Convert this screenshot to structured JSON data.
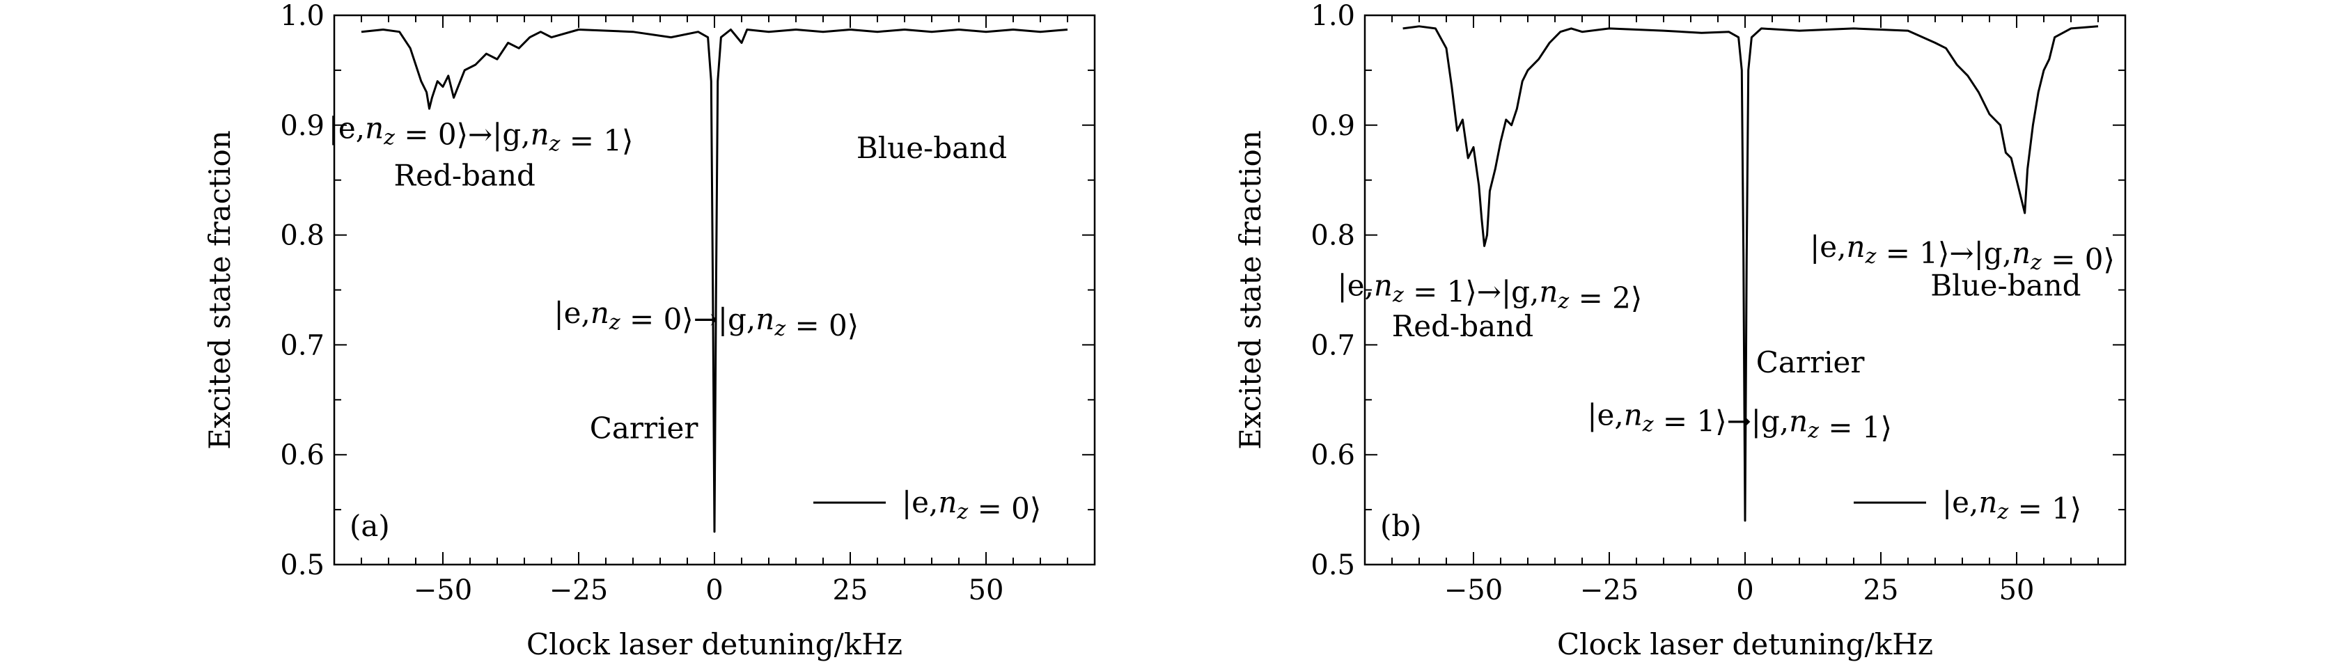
{
  "chart_data": [
    {
      "type": "line",
      "panel_label": "(a)",
      "xlabel": "Clock laser detuning/kHz",
      "ylabel": "Excited state fraction",
      "xlim": [
        -70,
        70
      ],
      "ylim": [
        0.5,
        1.0
      ],
      "xticks": [
        -50,
        -25,
        0,
        25,
        50
      ],
      "xtick_labels": [
        "−50",
        "−25",
        "0",
        "25",
        "50"
      ],
      "yticks": [
        0.5,
        0.6,
        0.7,
        0.8,
        0.9,
        1.0
      ],
      "ytick_labels": [
        "0.5",
        "0.6",
        "0.7",
        "0.8",
        "0.9",
        "1.0"
      ],
      "legend": "|e,n_z = 0⟩",
      "legend_placement": "bottom-right",
      "grid": false,
      "annotations": [
        {
          "text": "|e,n_z = 0⟩→|g,n_z = 1⟩",
          "x": -43,
          "y": 0.888
        },
        {
          "text": "Red-band",
          "x": -46,
          "y": 0.845
        },
        {
          "text": "Blue-band",
          "x": 40,
          "y": 0.87
        },
        {
          "text": "|e,n_z = 0⟩→|g,n_z = 0⟩",
          "x": -1.5,
          "y": 0.72
        },
        {
          "text": "Carrier",
          "x": -13,
          "y": 0.615
        }
      ],
      "series": [
        {
          "x": [
            -65,
            -61,
            -58,
            -56,
            -55,
            -54,
            -53,
            -52.5,
            -52,
            -51,
            -50,
            -49,
            -48,
            -46,
            -44,
            -42,
            -40,
            -38,
            -36,
            -34,
            -32,
            -30,
            -25,
            -15,
            -8,
            -3,
            -1.2,
            -0.6,
            -0.3,
            0,
            0.3,
            0.6,
            1.2,
            3,
            5,
            6,
            10,
            15,
            20,
            25,
            30,
            35,
            40,
            45,
            50,
            55,
            60,
            65
          ],
          "y": [
            0.985,
            0.987,
            0.985,
            0.97,
            0.955,
            0.94,
            0.93,
            0.915,
            0.925,
            0.94,
            0.935,
            0.945,
            0.925,
            0.95,
            0.955,
            0.965,
            0.96,
            0.975,
            0.97,
            0.98,
            0.985,
            0.98,
            0.987,
            0.985,
            0.98,
            0.985,
            0.98,
            0.94,
            0.75,
            0.53,
            0.75,
            0.94,
            0.98,
            0.987,
            0.975,
            0.987,
            0.985,
            0.987,
            0.985,
            0.987,
            0.985,
            0.987,
            0.985,
            0.987,
            0.985,
            0.987,
            0.985,
            0.987
          ]
        }
      ]
    },
    {
      "type": "line",
      "panel_label": "(b)",
      "xlabel": "Clock laser detuning/kHz",
      "ylabel": "Excited state fraction",
      "xlim": [
        -70,
        70
      ],
      "ylim": [
        0.5,
        1.0
      ],
      "xticks": [
        -50,
        -25,
        0,
        25,
        50
      ],
      "xtick_labels": [
        "−50",
        "−25",
        "0",
        "25",
        "50"
      ],
      "yticks": [
        0.5,
        0.6,
        0.7,
        0.8,
        0.9,
        1.0
      ],
      "ytick_labels": [
        "0.5",
        "0.6",
        "0.7",
        "0.8",
        "0.9",
        "1.0"
      ],
      "legend": "|e,n_z = 1⟩",
      "legend_placement": "bottom-right",
      "grid": false,
      "annotations": [
        {
          "text": "|e,n_z = 1⟩→|g,n_z = 2⟩",
          "x": -47,
          "y": 0.745
        },
        {
          "text": "Red-band",
          "x": -52,
          "y": 0.708
        },
        {
          "text": "|e,n_z = 1⟩→|g,n_z = 0⟩",
          "x": 40,
          "y": 0.78
        },
        {
          "text": "Blue-band",
          "x": 48,
          "y": 0.745
        },
        {
          "text": "Carrier",
          "x": 12,
          "y": 0.675
        },
        {
          "text": "|e,n_z = 1⟩→|g,n_z = 1⟩",
          "x": -1,
          "y": 0.627
        }
      ],
      "series": [
        {
          "x": [
            -63,
            -60,
            -57,
            -55,
            -54,
            -53,
            -52,
            -51,
            -50,
            -49,
            -48.5,
            -48,
            -47.5,
            -47,
            -46,
            -45,
            -44,
            -43,
            -42,
            -41,
            -40,
            -38,
            -36,
            -34,
            -32,
            -30,
            -25,
            -15,
            -8,
            -3,
            -1.2,
            -0.6,
            -0.3,
            0,
            0.3,
            0.6,
            1.2,
            3,
            10,
            20,
            30,
            35,
            37,
            39,
            41,
            43,
            45,
            47,
            48,
            49,
            50,
            51,
            51.5,
            52,
            53,
            54,
            55,
            56,
            57,
            60,
            65
          ],
          "y": [
            0.988,
            0.99,
            0.988,
            0.97,
            0.935,
            0.895,
            0.905,
            0.87,
            0.88,
            0.845,
            0.815,
            0.79,
            0.8,
            0.84,
            0.86,
            0.885,
            0.905,
            0.9,
            0.915,
            0.94,
            0.95,
            0.96,
            0.975,
            0.985,
            0.988,
            0.985,
            0.988,
            0.986,
            0.984,
            0.985,
            0.98,
            0.95,
            0.78,
            0.54,
            0.78,
            0.95,
            0.98,
            0.988,
            0.986,
            0.988,
            0.986,
            0.975,
            0.97,
            0.955,
            0.945,
            0.93,
            0.91,
            0.9,
            0.875,
            0.87,
            0.85,
            0.83,
            0.82,
            0.86,
            0.9,
            0.93,
            0.95,
            0.96,
            0.98,
            0.988,
            0.99
          ]
        }
      ]
    }
  ]
}
